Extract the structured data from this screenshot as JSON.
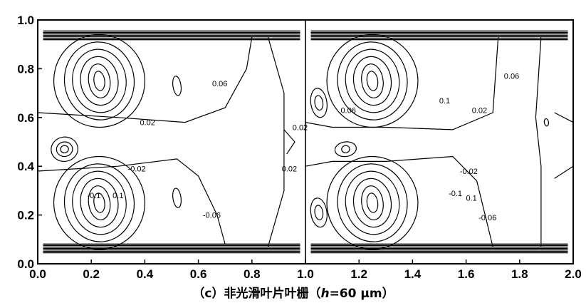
{
  "chart_data": {
    "type": "contour",
    "title": "",
    "caption": "（c）非光滑叶片叶栅（h=60 μm）",
    "caption_parts": {
      "prefix": "（c）非光滑叶片叶栅（",
      "variable": "h",
      "equals": "=60 μm）"
    },
    "xlabel": "",
    "ylabel": "",
    "xlim": [
      0.0,
      2.0
    ],
    "ylim": [
      0.0,
      1.0
    ],
    "x_ticks": [
      "0.0",
      "0.2",
      "0.4",
      "0.6",
      "0.8",
      "1.0",
      "1.2",
      "1.4",
      "1.6",
      "1.8",
      "2.0"
    ],
    "y_ticks": [
      "0.0",
      "0.2",
      "0.4",
      "0.6",
      "0.8",
      "1.0"
    ],
    "divider_x": 1.0,
    "contour_labels": [
      {
        "text": "0.06",
        "x": 0.68,
        "y": 0.74
      },
      {
        "text": "0.02",
        "x": 0.41,
        "y": 0.58
      },
      {
        "text": "-0.02",
        "x": 0.37,
        "y": 0.39
      },
      {
        "text": "-0.1",
        "x": 0.21,
        "y": 0.28
      },
      {
        "text": "0.1",
        "x": 0.3,
        "y": 0.28
      },
      {
        "text": "-0.06",
        "x": 0.65,
        "y": 0.2
      },
      {
        "text": "0.02",
        "x": 0.98,
        "y": 0.56
      },
      {
        "text": "0.02",
        "x": 0.94,
        "y": 0.39
      },
      {
        "text": "0.06",
        "x": 1.16,
        "y": 0.63
      },
      {
        "text": "0.1",
        "x": 1.52,
        "y": 0.67
      },
      {
        "text": "0.06",
        "x": 1.77,
        "y": 0.77
      },
      {
        "text": "0.02",
        "x": 1.65,
        "y": 0.63
      },
      {
        "text": "-0.02",
        "x": 1.61,
        "y": 0.38
      },
      {
        "text": "-0.1",
        "x": 1.56,
        "y": 0.29
      },
      {
        "text": "0.1",
        "x": 1.62,
        "y": 0.27
      },
      {
        "text": "-0.06",
        "x": 1.68,
        "y": 0.19
      }
    ]
  }
}
